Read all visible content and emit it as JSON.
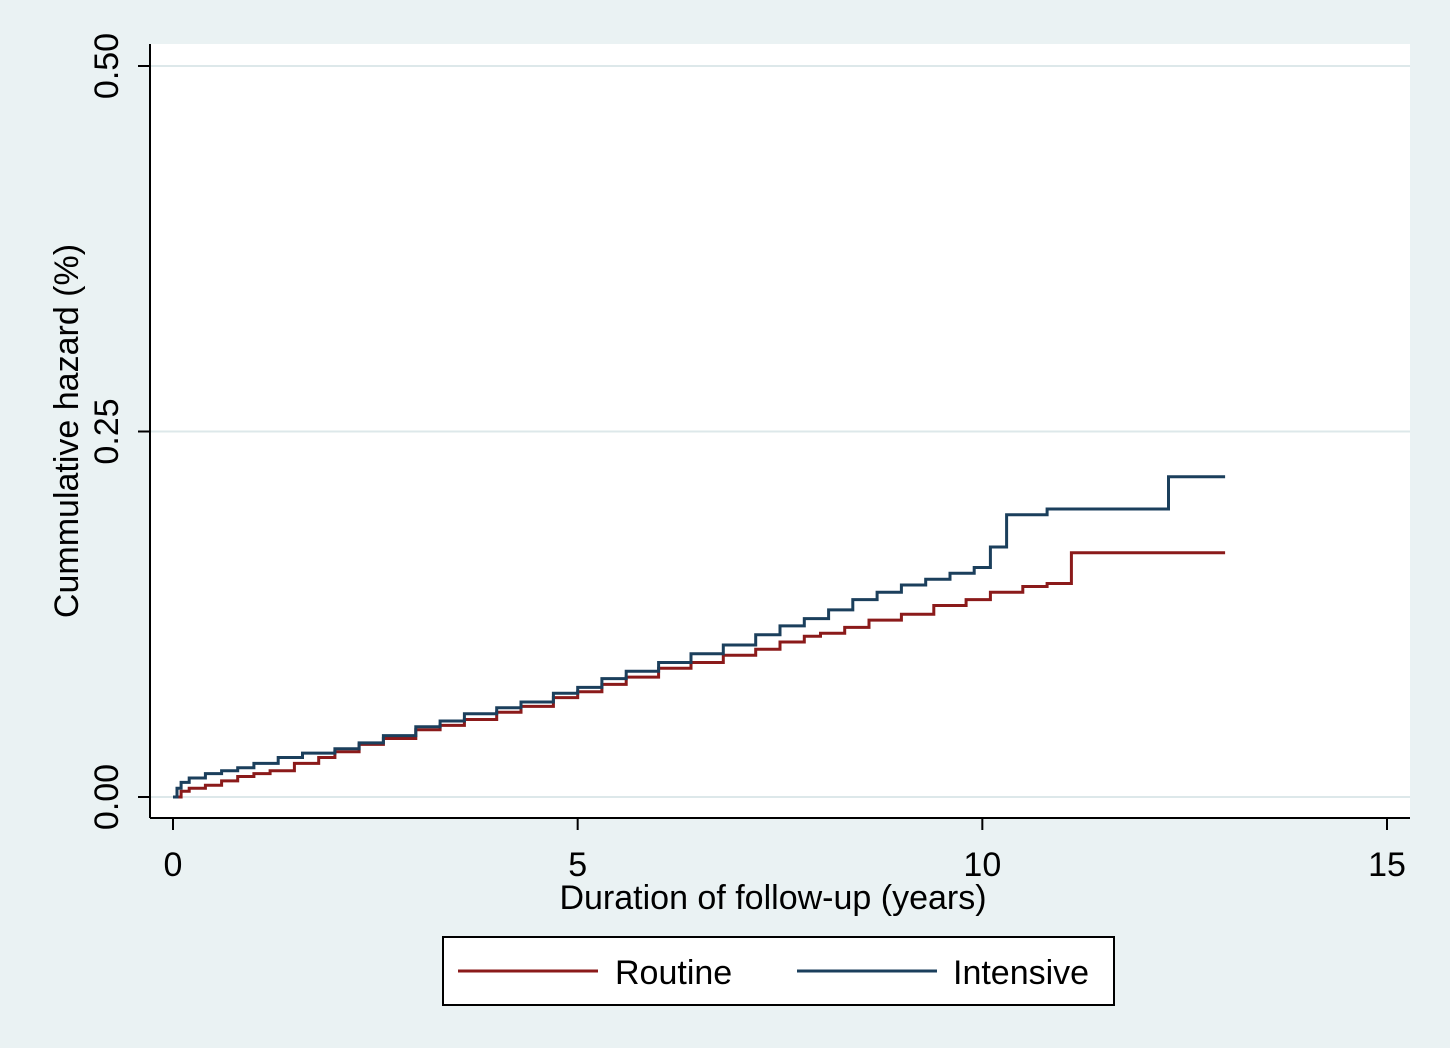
{
  "chart_data": {
    "type": "line",
    "step": true,
    "xlabel": "Duration of follow-up (years)",
    "ylabel": "Cummulative hazard (%)",
    "xlim": [
      0,
      15
    ],
    "ylim": [
      0,
      0.5
    ],
    "xticks": [
      0,
      5,
      10,
      15
    ],
    "xtick_labels": [
      "0",
      "5",
      "10",
      "15"
    ],
    "yticks": [
      0,
      0.25,
      0.5
    ],
    "ytick_labels": [
      "0.00",
      "0.25",
      "0.50"
    ],
    "grid": "horizontal",
    "legend_position": "bottom",
    "colors": {
      "background": "#eaf2f3",
      "plot_area": "#ffffff",
      "gridline": "#dde8ea",
      "axis": "#000000"
    },
    "series": [
      {
        "name": "Routine",
        "color": "#8b1a1a",
        "x": [
          0,
          0.1,
          0.2,
          0.4,
          0.6,
          0.8,
          1.0,
          1.2,
          1.5,
          1.8,
          2.0,
          2.3,
          2.6,
          3.0,
          3.3,
          3.6,
          4.0,
          4.3,
          4.7,
          5.0,
          5.3,
          5.6,
          6.0,
          6.4,
          6.8,
          7.2,
          7.5,
          7.8,
          8.0,
          8.3,
          8.6,
          9.0,
          9.4,
          9.8,
          10.1,
          10.5,
          10.8,
          11.1,
          11.5,
          12.0,
          12.5,
          13.0
        ],
        "y": [
          0,
          0.004,
          0.006,
          0.008,
          0.011,
          0.014,
          0.016,
          0.018,
          0.023,
          0.027,
          0.031,
          0.036,
          0.04,
          0.046,
          0.049,
          0.053,
          0.058,
          0.062,
          0.068,
          0.072,
          0.077,
          0.082,
          0.088,
          0.092,
          0.097,
          0.101,
          0.106,
          0.11,
          0.112,
          0.116,
          0.121,
          0.125,
          0.131,
          0.135,
          0.14,
          0.144,
          0.146,
          0.167,
          0.167,
          0.167,
          0.167,
          0.167
        ]
      },
      {
        "name": "Intensive",
        "color": "#1b3f5c",
        "x": [
          0,
          0.05,
          0.1,
          0.2,
          0.4,
          0.6,
          0.8,
          1.0,
          1.3,
          1.6,
          2.0,
          2.3,
          2.6,
          3.0,
          3.3,
          3.6,
          4.0,
          4.3,
          4.7,
          5.0,
          5.3,
          5.6,
          6.0,
          6.4,
          6.8,
          7.2,
          7.5,
          7.8,
          8.1,
          8.4,
          8.7,
          9.0,
          9.3,
          9.6,
          9.9,
          10.1,
          10.3,
          10.6,
          10.8,
          11.0,
          11.5,
          12.0,
          12.3,
          12.6,
          13.0
        ],
        "y": [
          0,
          0.006,
          0.01,
          0.013,
          0.016,
          0.018,
          0.02,
          0.023,
          0.027,
          0.03,
          0.033,
          0.037,
          0.042,
          0.048,
          0.052,
          0.057,
          0.061,
          0.065,
          0.071,
          0.075,
          0.081,
          0.086,
          0.092,
          0.098,
          0.104,
          0.111,
          0.117,
          0.122,
          0.128,
          0.135,
          0.14,
          0.145,
          0.149,
          0.153,
          0.157,
          0.171,
          0.193,
          0.193,
          0.197,
          0.197,
          0.197,
          0.197,
          0.219,
          0.219,
          0.219
        ]
      }
    ]
  }
}
